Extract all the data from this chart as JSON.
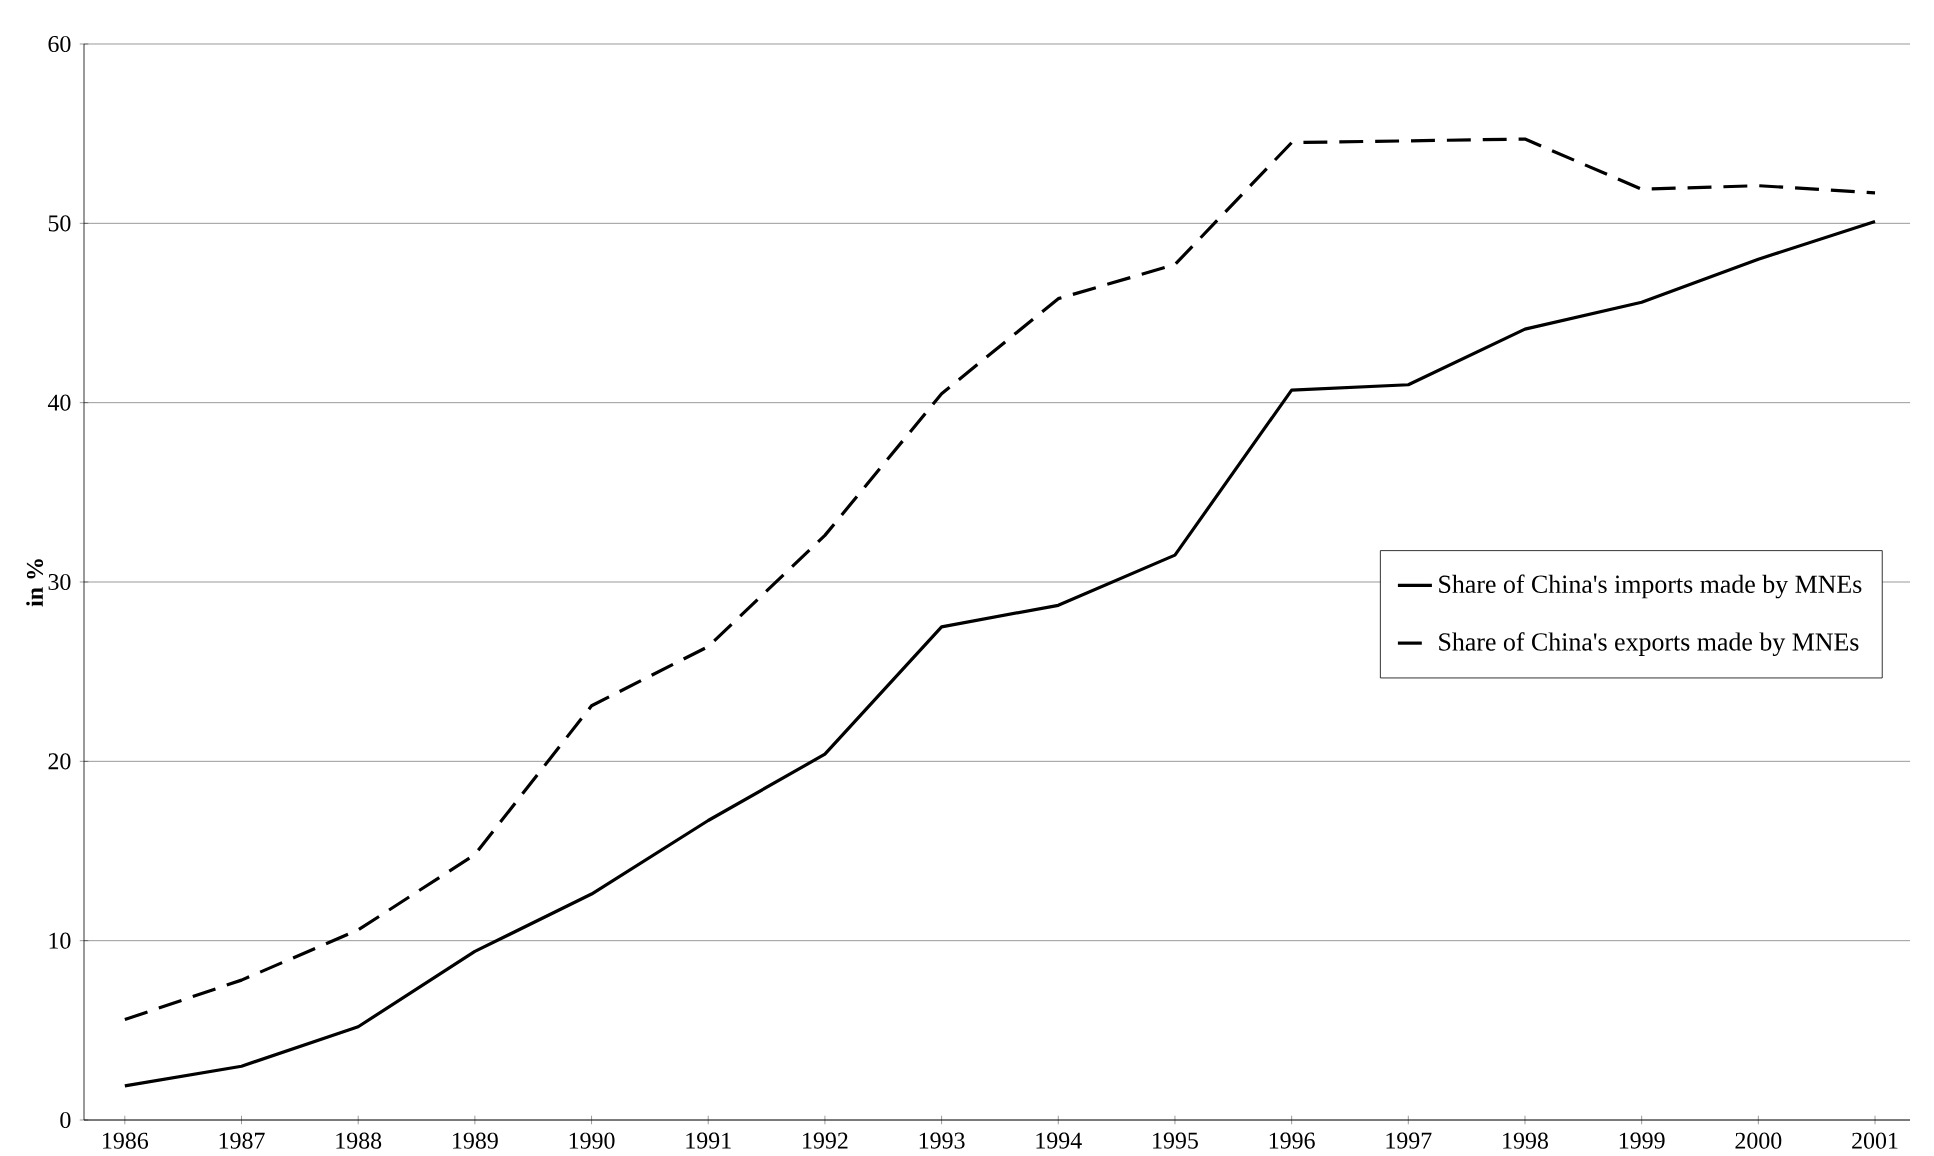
{
  "chart_data": {
    "type": "line",
    "ylabel": "in %",
    "categories": [
      "1986",
      "1987",
      "1988",
      "1989",
      "1990",
      "1991",
      "1992",
      "1993",
      "1994",
      "1995",
      "1996",
      "1997",
      "1998",
      "1999",
      "2000",
      "2001"
    ],
    "series": [
      {
        "name": "Share of China's imports made by MNEs",
        "color": "#000000",
        "line_style": "solid",
        "values": [
          1.9,
          3.0,
          5.2,
          9.4,
          12.6,
          16.7,
          20.4,
          27.5,
          28.7,
          31.5,
          40.7,
          41.0,
          44.1,
          45.6,
          48.0,
          50.1
        ]
      },
      {
        "name": "Share of China's exports made by MNEs",
        "color": "#000000",
        "line_style": "dashed",
        "values": [
          5.6,
          7.8,
          10.6,
          14.8,
          23.1,
          26.4,
          32.6,
          40.5,
          45.8,
          47.7,
          54.5,
          54.6,
          54.7,
          51.9,
          52.1,
          51.7
        ]
      }
    ],
    "ylim": [
      0,
      60
    ],
    "yticks": [
      0,
      10,
      20,
      30,
      40,
      50,
      60
    ],
    "grid": "y",
    "legend": "right",
    "marker": "none"
  }
}
